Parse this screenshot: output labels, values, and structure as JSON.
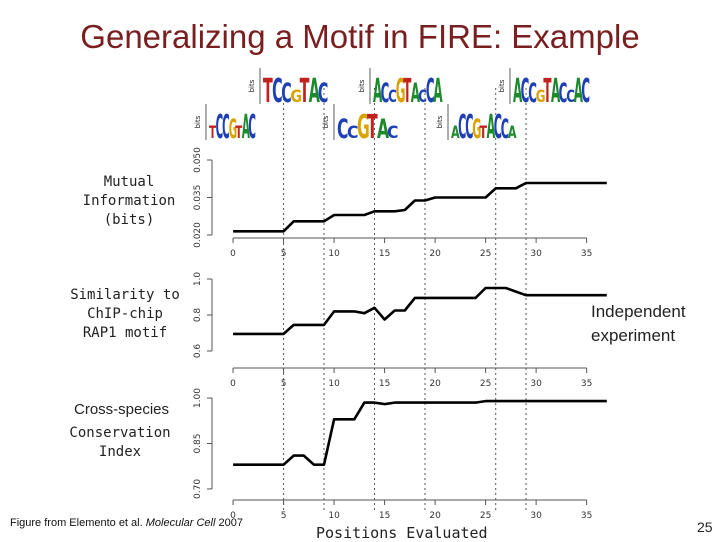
{
  "title": "Generalizing a Motif in FIRE: Example",
  "credit": {
    "prefix": "Figure from Elemento et al. ",
    "journal": "Molecular Cell",
    "year": " 2007"
  },
  "page_number": "25",
  "annotations": {
    "independent": "Independent\nexperiment",
    "cross_species": "Cross-species"
  },
  "motif_logos": [
    {
      "text": "TCCGTAC",
      "axis_label": "bits"
    },
    {
      "text": "TCCGTAC",
      "axis_label": "bits"
    },
    {
      "text": "ACCGTACCA",
      "axis_label": "bits"
    },
    {
      "text": "CCGTAC",
      "axis_label": "bits"
    },
    {
      "text": "ACCGTACCA",
      "axis_label": "bits"
    },
    {
      "text": "ACCGTACCAC",
      "axis_label": "bits"
    }
  ],
  "colors": {
    "title": "#7a1f1f",
    "line": "#000000",
    "guide": "#555555",
    "axis": "#555555"
  },
  "chart_data": [
    {
      "type": "line",
      "ylabel": "Mutual\nInformation\n(bits)",
      "ylim": [
        0.018,
        0.058
      ],
      "yticks": [
        "0.020",
        "0.035",
        "0.050"
      ],
      "ytick_values": [
        0.02,
        0.035,
        0.05
      ],
      "xlabel": "",
      "xticks": [
        "0",
        "5",
        "10",
        "15",
        "20",
        "25",
        "30",
        "35"
      ],
      "xtick_values": [
        0,
        5,
        10,
        15,
        20,
        25,
        30,
        35
      ],
      "xlim": [
        -0.5,
        38.5
      ],
      "x": [
        0,
        1,
        2,
        3,
        4,
        5,
        6,
        7,
        8,
        9,
        10,
        11,
        12,
        13,
        14,
        15,
        16,
        17,
        18,
        19,
        20,
        21,
        22,
        23,
        24,
        25,
        26,
        27,
        28,
        29,
        30,
        31,
        32,
        33,
        34,
        35,
        36,
        37
      ],
      "y": [
        0.0215,
        0.0215,
        0.0215,
        0.0215,
        0.0215,
        0.0215,
        0.0255,
        0.0255,
        0.0255,
        0.0255,
        0.028,
        0.028,
        0.028,
        0.028,
        0.0295,
        0.0295,
        0.0295,
        0.03,
        0.0338,
        0.0338,
        0.035,
        0.035,
        0.035,
        0.035,
        0.035,
        0.035,
        0.0387,
        0.0387,
        0.0387,
        0.0408,
        0.0408,
        0.0408,
        0.0408,
        0.0408,
        0.0408,
        0.0408,
        0.0408,
        0.0408
      ]
    },
    {
      "type": "line",
      "ylabel": "Similarity to\nChIP-chip\nRAP1 motif",
      "ylim": [
        0.55,
        1.05
      ],
      "yticks": [
        "0.6",
        "0.8",
        "1.0"
      ],
      "ytick_values": [
        0.6,
        0.8,
        1.0
      ],
      "xlabel": "",
      "xticks": [
        "0",
        "5",
        "10",
        "15",
        "20",
        "25",
        "30",
        "35"
      ],
      "xtick_values": [
        0,
        5,
        10,
        15,
        20,
        25,
        30,
        35
      ],
      "xlim": [
        -0.5,
        38.5
      ],
      "x": [
        0,
        1,
        2,
        3,
        4,
        5,
        6,
        7,
        8,
        9,
        10,
        11,
        12,
        13,
        14,
        15,
        16,
        17,
        18,
        19,
        20,
        21,
        22,
        23,
        24,
        25,
        26,
        27,
        28,
        29,
        30,
        31,
        32,
        33,
        34,
        35,
        36,
        37
      ],
      "y": [
        0.695,
        0.695,
        0.695,
        0.695,
        0.695,
        0.695,
        0.745,
        0.745,
        0.745,
        0.745,
        0.82,
        0.82,
        0.82,
        0.81,
        0.84,
        0.775,
        0.825,
        0.825,
        0.895,
        0.895,
        0.895,
        0.895,
        0.895,
        0.895,
        0.895,
        0.95,
        0.95,
        0.95,
        0.93,
        0.91,
        0.91,
        0.91,
        0.91,
        0.91,
        0.91,
        0.91,
        0.91,
        0.91
      ]
    },
    {
      "type": "line",
      "ylabel": "Conservation\nIndex",
      "ylim": [
        0.68,
        1.02
      ],
      "yticks": [
        "0.70",
        "0.85",
        "1.00"
      ],
      "ytick_values": [
        0.7,
        0.85,
        1.0
      ],
      "xlabel": "Positions Evaluated",
      "xticks": [
        "0",
        "5",
        "10",
        "15",
        "20",
        "25",
        "30",
        "35"
      ],
      "xtick_values": [
        0,
        5,
        10,
        15,
        20,
        25,
        30,
        35
      ],
      "xlim": [
        -0.5,
        38.5
      ],
      "x": [
        0,
        1,
        2,
        3,
        4,
        5,
        6,
        7,
        8,
        9,
        10,
        11,
        12,
        13,
        14,
        15,
        16,
        17,
        18,
        19,
        20,
        21,
        22,
        23,
        24,
        25,
        26,
        27,
        28,
        29,
        30,
        31,
        32,
        33,
        34,
        35,
        36,
        37
      ],
      "y": [
        0.78,
        0.78,
        0.78,
        0.78,
        0.78,
        0.78,
        0.81,
        0.81,
        0.78,
        0.78,
        0.93,
        0.93,
        0.93,
        0.985,
        0.985,
        0.98,
        0.985,
        0.985,
        0.985,
        0.985,
        0.985,
        0.985,
        0.985,
        0.985,
        0.985,
        0.99,
        0.99,
        0.99,
        0.99,
        0.99,
        0.99,
        0.99,
        0.99,
        0.99,
        0.99,
        0.99,
        0.99,
        0.99
      ]
    }
  ],
  "guide_positions": [
    5,
    9,
    14,
    19,
    26,
    29
  ]
}
